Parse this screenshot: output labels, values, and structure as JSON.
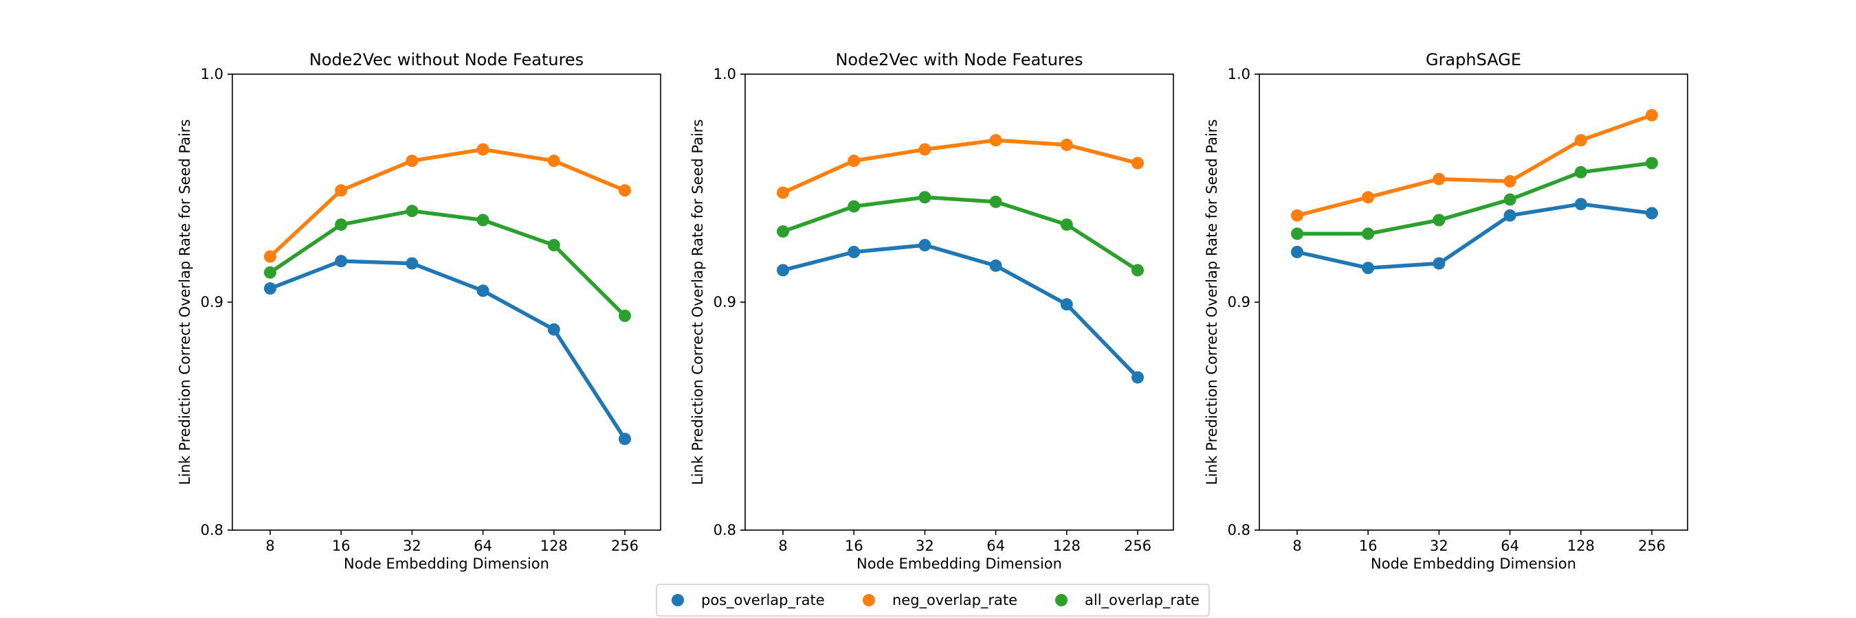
{
  "chart_data": [
    {
      "type": "line",
      "title": "Node2Vec without Node Features",
      "xlabel": "Node Embedding Dimension",
      "ylabel": "Link Prediction Correct Overlap Rate for Seed Pairs",
      "categories": [
        "8",
        "16",
        "32",
        "64",
        "128",
        "256"
      ],
      "ylim": [
        0.8,
        1.0
      ],
      "yticks": [
        "0.8",
        "0.9",
        "1.0"
      ],
      "series": [
        {
          "name": "pos_overlap_rate",
          "values": [
            0.906,
            0.918,
            0.917,
            0.905,
            0.888,
            0.84
          ]
        },
        {
          "name": "neg_overlap_rate",
          "values": [
            0.92,
            0.949,
            0.962,
            0.967,
            0.962,
            0.949
          ]
        },
        {
          "name": "all_overlap_rate",
          "values": [
            0.913,
            0.934,
            0.94,
            0.936,
            0.925,
            0.894
          ]
        }
      ]
    },
    {
      "type": "line",
      "title": "Node2Vec with Node Features",
      "xlabel": "Node Embedding Dimension",
      "ylabel": "Link Prediction Correct Overlap Rate for Seed Pairs",
      "categories": [
        "8",
        "16",
        "32",
        "64",
        "128",
        "256"
      ],
      "ylim": [
        0.8,
        1.0
      ],
      "yticks": [
        "0.8",
        "0.9",
        "1.0"
      ],
      "series": [
        {
          "name": "pos_overlap_rate",
          "values": [
            0.914,
            0.922,
            0.925,
            0.916,
            0.899,
            0.867
          ]
        },
        {
          "name": "neg_overlap_rate",
          "values": [
            0.948,
            0.962,
            0.967,
            0.971,
            0.969,
            0.961
          ]
        },
        {
          "name": "all_overlap_rate",
          "values": [
            0.931,
            0.942,
            0.946,
            0.944,
            0.934,
            0.914
          ]
        }
      ]
    },
    {
      "type": "line",
      "title": "GraphSAGE",
      "xlabel": "Node Embedding Dimension",
      "ylabel": "Link Prediction Correct Overlap Rate for Seed Pairs",
      "categories": [
        "8",
        "16",
        "32",
        "64",
        "128",
        "256"
      ],
      "ylim": [
        0.8,
        1.0
      ],
      "yticks": [
        "0.8",
        "0.9",
        "1.0"
      ],
      "series": [
        {
          "name": "pos_overlap_rate",
          "values": [
            0.922,
            0.915,
            0.917,
            0.938,
            0.943,
            0.939
          ]
        },
        {
          "name": "neg_overlap_rate",
          "values": [
            0.938,
            0.946,
            0.954,
            0.953,
            0.971,
            0.982
          ]
        },
        {
          "name": "all_overlap_rate",
          "values": [
            0.93,
            0.93,
            0.936,
            0.945,
            0.957,
            0.961
          ]
        }
      ]
    }
  ],
  "legend": {
    "placement": "bottom-center",
    "entries": [
      "pos_overlap_rate",
      "neg_overlap_rate",
      "all_overlap_rate"
    ]
  },
  "colors": {
    "pos_overlap_rate": "#1f77b4",
    "neg_overlap_rate": "#ff7f0e",
    "all_overlap_rate": "#2ca02c"
  }
}
